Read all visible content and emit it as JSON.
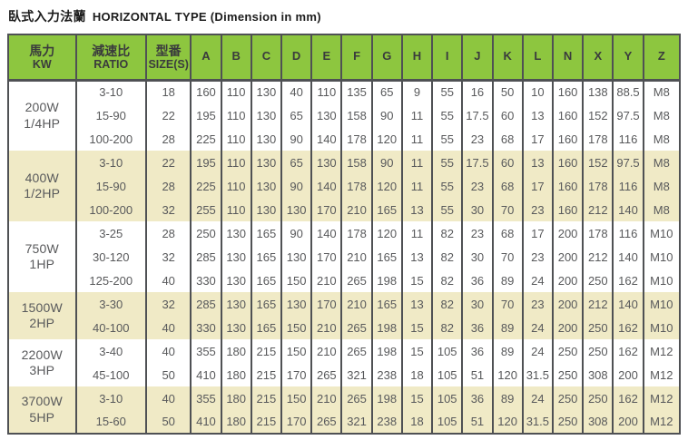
{
  "title": {
    "zh": "臥式入力法蘭",
    "en": "HORIZONTAL TYPE (Dimension in mm)"
  },
  "colors": {
    "header_bg": "#8dc63f",
    "alt_row_bg": "#f0eac6",
    "border": "#4f5154",
    "text": "#58595b",
    "header_text": "#3a3b3d",
    "title_text": "#1c1c1c"
  },
  "table": {
    "column_headers": [
      {
        "line1": "馬力",
        "line2": "KW"
      },
      {
        "line1": "減速比",
        "line2": "RATIO"
      },
      {
        "line1": "型番",
        "line2": "SIZE(S)"
      }
    ],
    "dim_headers": [
      "A",
      "B",
      "C",
      "D",
      "E",
      "F",
      "G",
      "H",
      "I",
      "J",
      "K",
      "L",
      "N",
      "X",
      "Y",
      "Z"
    ],
    "groups": [
      {
        "power_w": "200W",
        "power_hp": "1/4HP",
        "rows": [
          {
            "ratio": "3-10",
            "size": "18",
            "dims": [
              "160",
              "110",
              "130",
              "40",
              "110",
              "135",
              "65",
              "9",
              "55",
              "16",
              "50",
              "10",
              "160",
              "138",
              "88.5",
              "M8"
            ]
          },
          {
            "ratio": "15-90",
            "size": "22",
            "dims": [
              "195",
              "110",
              "130",
              "65",
              "130",
              "158",
              "90",
              "11",
              "55",
              "17.5",
              "60",
              "13",
              "160",
              "152",
              "97.5",
              "M8"
            ]
          },
          {
            "ratio": "100-200",
            "size": "28",
            "dims": [
              "225",
              "110",
              "130",
              "90",
              "140",
              "178",
              "120",
              "11",
              "55",
              "23",
              "68",
              "17",
              "160",
              "178",
              "116",
              "M8"
            ]
          }
        ]
      },
      {
        "power_w": "400W",
        "power_hp": "1/2HP",
        "rows": [
          {
            "ratio": "3-10",
            "size": "22",
            "dims": [
              "195",
              "110",
              "130",
              "65",
              "130",
              "158",
              "90",
              "11",
              "55",
              "17.5",
              "60",
              "13",
              "160",
              "152",
              "97.5",
              "M8"
            ]
          },
          {
            "ratio": "15-90",
            "size": "28",
            "dims": [
              "225",
              "110",
              "130",
              "90",
              "140",
              "178",
              "120",
              "11",
              "55",
              "23",
              "68",
              "17",
              "160",
              "178",
              "116",
              "M8"
            ]
          },
          {
            "ratio": "100-200",
            "size": "32",
            "dims": [
              "255",
              "110",
              "130",
              "130",
              "170",
              "210",
              "165",
              "13",
              "55",
              "30",
              "70",
              "23",
              "160",
              "212",
              "140",
              "M8"
            ]
          }
        ]
      },
      {
        "power_w": "750W",
        "power_hp": "1HP",
        "rows": [
          {
            "ratio": "3-25",
            "size": "28",
            "dims": [
              "250",
              "130",
              "165",
              "90",
              "140",
              "178",
              "120",
              "11",
              "82",
              "23",
              "68",
              "17",
              "200",
              "178",
              "116",
              "M10"
            ]
          },
          {
            "ratio": "30-120",
            "size": "32",
            "dims": [
              "285",
              "130",
              "165",
              "130",
              "170",
              "210",
              "165",
              "13",
              "82",
              "30",
              "70",
              "23",
              "200",
              "212",
              "140",
              "M10"
            ]
          },
          {
            "ratio": "125-200",
            "size": "40",
            "dims": [
              "330",
              "130",
              "165",
              "150",
              "210",
              "265",
              "198",
              "15",
              "82",
              "36",
              "89",
              "24",
              "200",
              "250",
              "162",
              "M10"
            ]
          }
        ]
      },
      {
        "power_w": "1500W",
        "power_hp": "2HP",
        "rows": [
          {
            "ratio": "3-30",
            "size": "32",
            "dims": [
              "285",
              "130",
              "165",
              "130",
              "170",
              "210",
              "165",
              "13",
              "82",
              "30",
              "70",
              "23",
              "200",
              "212",
              "140",
              "M10"
            ]
          },
          {
            "ratio": "40-100",
            "size": "40",
            "dims": [
              "330",
              "130",
              "165",
              "150",
              "210",
              "265",
              "198",
              "15",
              "82",
              "36",
              "89",
              "24",
              "200",
              "250",
              "162",
              "M10"
            ]
          }
        ]
      },
      {
        "power_w": "2200W",
        "power_hp": "3HP",
        "rows": [
          {
            "ratio": "3-40",
            "size": "40",
            "dims": [
              "355",
              "180",
              "215",
              "150",
              "210",
              "265",
              "198",
              "15",
              "105",
              "36",
              "89",
              "24",
              "250",
              "250",
              "162",
              "M12"
            ]
          },
          {
            "ratio": "45-100",
            "size": "50",
            "dims": [
              "410",
              "180",
              "215",
              "170",
              "265",
              "321",
              "238",
              "18",
              "105",
              "51",
              "120",
              "31.5",
              "250",
              "308",
              "200",
              "M12"
            ]
          }
        ]
      },
      {
        "power_w": "3700W",
        "power_hp": "5HP",
        "rows": [
          {
            "ratio": "3-10",
            "size": "40",
            "dims": [
              "355",
              "180",
              "215",
              "150",
              "210",
              "265",
              "198",
              "15",
              "105",
              "36",
              "89",
              "24",
              "250",
              "250",
              "162",
              "M12"
            ]
          },
          {
            "ratio": "15-60",
            "size": "50",
            "dims": [
              "410",
              "180",
              "215",
              "170",
              "265",
              "321",
              "238",
              "18",
              "105",
              "51",
              "120",
              "31.5",
              "250",
              "308",
              "200",
              "M12"
            ]
          }
        ]
      }
    ]
  }
}
